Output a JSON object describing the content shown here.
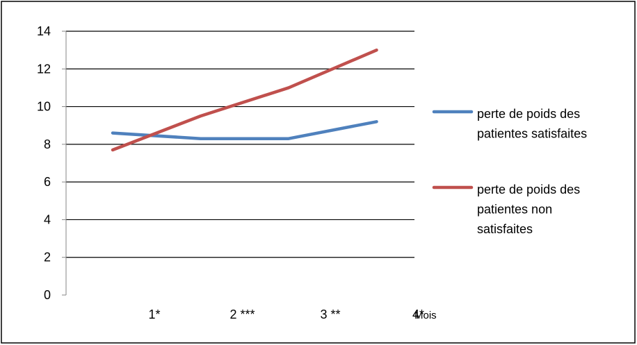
{
  "chart_data": {
    "type": "line",
    "title": "",
    "xlabel": "Mois",
    "ylabel": "",
    "categories": [
      "1*",
      "2 ***",
      "3 **",
      "4*"
    ],
    "ylim": [
      0,
      14
    ],
    "yticks": [
      0,
      2,
      4,
      6,
      8,
      10,
      12,
      14
    ],
    "grid": "horizontal",
    "legend_position": "right",
    "series": [
      {
        "name": "perte de poids des patientes satisfaites",
        "legend_lines": [
          "perte de poids des",
          "patientes satisfaites"
        ],
        "color": "#4F81BD",
        "values": [
          8.6,
          8.3,
          8.3,
          9.2
        ]
      },
      {
        "name": "perte de poids des patientes non satisfaites",
        "legend_lines": [
          "perte de poids des",
          "patientes non",
          "satisfaites"
        ],
        "color": "#C0504D",
        "values": [
          7.7,
          9.5,
          11.0,
          13.0
        ]
      }
    ]
  }
}
